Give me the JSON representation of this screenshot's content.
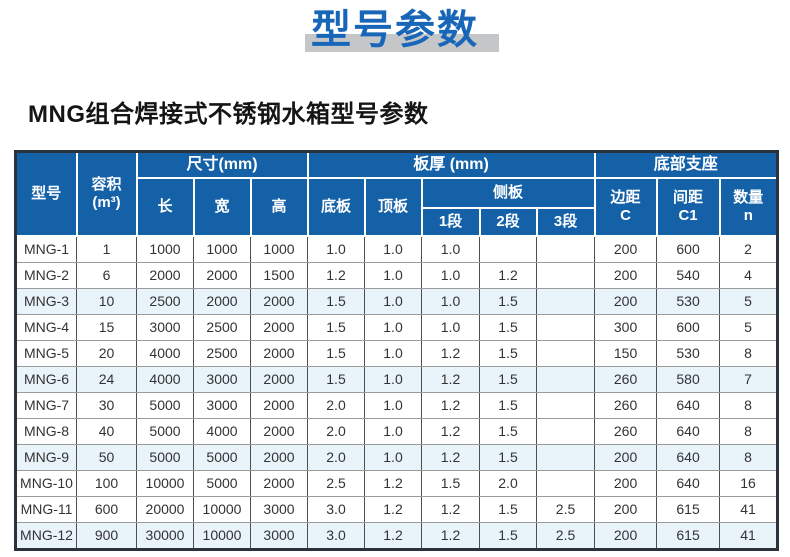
{
  "page": {
    "title": "型号参数",
    "subtitle": "MNG组合焊接式不锈钢水箱型号参数"
  },
  "colors": {
    "title_blue": "#1866b8",
    "title_strip_gray": "#c5c6c8",
    "header_bg_blue": "#1461a8",
    "row_tint_blue": "#e8f3fa",
    "body_text": "#333333"
  },
  "table": {
    "header": {
      "model": "型号",
      "volume_line1": "容积",
      "volume_line2": "(m³)",
      "size_group": "尺寸(mm)",
      "length": "长",
      "width": "宽",
      "height": "高",
      "thickness_group": "板厚 (mm)",
      "bottom_plate": "底板",
      "top_plate": "顶板",
      "side_plate_group": "侧板",
      "seg1": "1段",
      "seg2": "2段",
      "seg3": "3段",
      "support_group": "底部支座",
      "edge_line1": "边距",
      "edge_line2": "C",
      "spacing_line1": "间距",
      "spacing_line2": "C1",
      "count_line1": "数量",
      "count_line2": "n"
    },
    "rows": [
      [
        "MNG-1",
        "1",
        "1000",
        "1000",
        "1000",
        "1.0",
        "1.0",
        "1.0",
        "",
        "",
        "200",
        "600",
        "2"
      ],
      [
        "MNG-2",
        "6",
        "2000",
        "2000",
        "1500",
        "1.2",
        "1.0",
        "1.0",
        "1.2",
        "",
        "200",
        "540",
        "4"
      ],
      [
        "MNG-3",
        "10",
        "2500",
        "2000",
        "2000",
        "1.5",
        "1.0",
        "1.0",
        "1.5",
        "",
        "200",
        "530",
        "5"
      ],
      [
        "MNG-4",
        "15",
        "3000",
        "2500",
        "2000",
        "1.5",
        "1.0",
        "1.0",
        "1.5",
        "",
        "300",
        "600",
        "5"
      ],
      [
        "MNG-5",
        "20",
        "4000",
        "2500",
        "2000",
        "1.5",
        "1.0",
        "1.2",
        "1.5",
        "",
        "150",
        "530",
        "8"
      ],
      [
        "MNG-6",
        "24",
        "4000",
        "3000",
        "2000",
        "1.5",
        "1.0",
        "1.2",
        "1.5",
        "",
        "260",
        "580",
        "7"
      ],
      [
        "MNG-7",
        "30",
        "5000",
        "3000",
        "2000",
        "2.0",
        "1.0",
        "1.2",
        "1.5",
        "",
        "260",
        "640",
        "8"
      ],
      [
        "MNG-8",
        "40",
        "5000",
        "4000",
        "2000",
        "2.0",
        "1.0",
        "1.2",
        "1.5",
        "",
        "260",
        "640",
        "8"
      ],
      [
        "MNG-9",
        "50",
        "5000",
        "5000",
        "2000",
        "2.0",
        "1.0",
        "1.2",
        "1.5",
        "",
        "200",
        "640",
        "8"
      ],
      [
        "MNG-10",
        "100",
        "10000",
        "5000",
        "2000",
        "2.5",
        "1.2",
        "1.5",
        "2.0",
        "",
        "200",
        "640",
        "16"
      ],
      [
        "MNG-11",
        "600",
        "20000",
        "10000",
        "3000",
        "3.0",
        "1.2",
        "1.2",
        "1.5",
        "2.5",
        "200",
        "615",
        "41"
      ],
      [
        "MNG-12",
        "900",
        "30000",
        "10000",
        "3000",
        "3.0",
        "1.2",
        "1.2",
        "1.5",
        "2.5",
        "200",
        "615",
        "41"
      ]
    ],
    "tinted_rows": [
      "MNG-3",
      "MNG-6",
      "MNG-9",
      "MNG-12"
    ]
  }
}
